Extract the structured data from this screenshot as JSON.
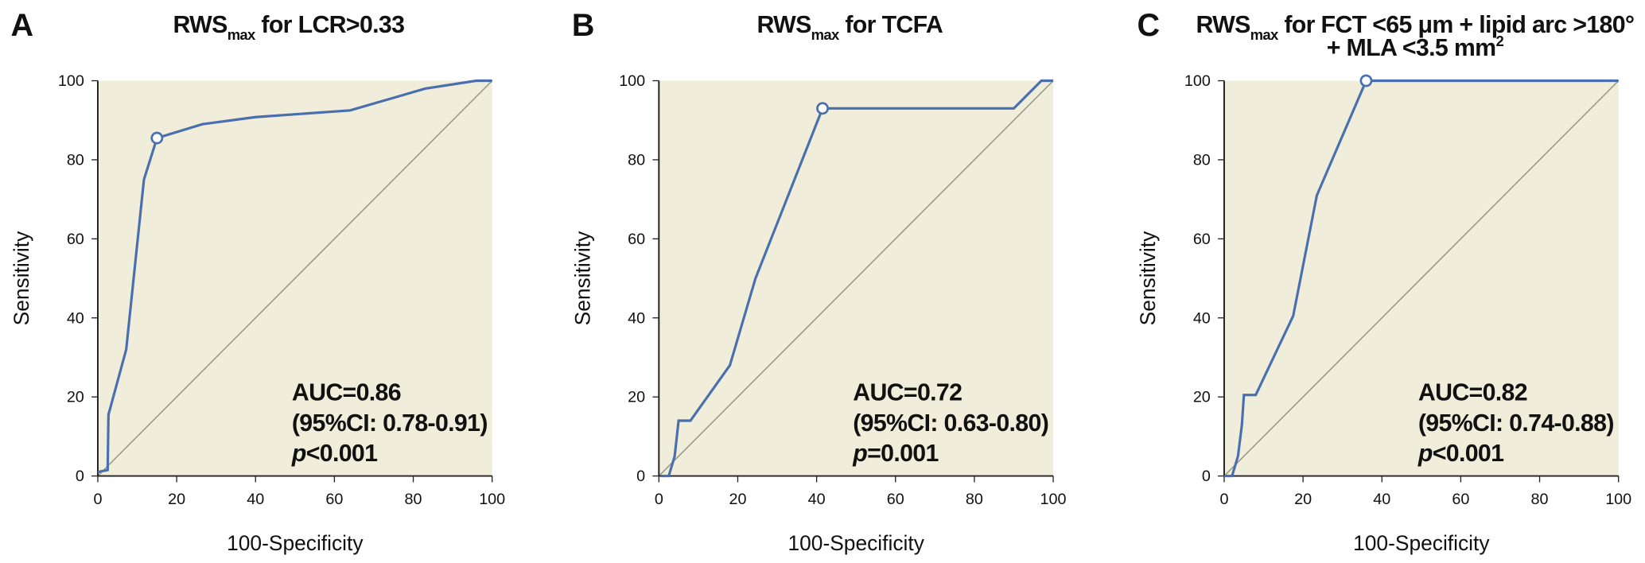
{
  "chart_data": [
    {
      "type": "line",
      "panel": "A",
      "title": [
        [
          {
            "text": "RWS"
          },
          {
            "text": "max",
            "sub": true
          },
          {
            "text": " for LCR>0.33"
          }
        ]
      ],
      "xlabel": "100-Specificity",
      "ylabel": "Sensitivity",
      "xlim": [
        0,
        100
      ],
      "ylim": [
        0,
        100
      ],
      "xticks": [
        0,
        20,
        40,
        60,
        80,
        100
      ],
      "yticks": [
        0,
        20,
        40,
        60,
        80,
        100
      ],
      "series": [
        {
          "color": "#4a6fae",
          "x": [
            0,
            2.5,
            2.7,
            7.2,
            11.7,
            15,
            26.5,
            40,
            64,
            83,
            96,
            100
          ],
          "values": [
            1,
            1.5,
            15.5,
            32,
            75,
            85.5,
            89,
            90.8,
            92.5,
            98,
            100,
            100
          ]
        }
      ],
      "marker": {
        "x": 15,
        "y": 85.5
      },
      "annotations": [
        "AUC=0.86",
        "(95%CI: 0.78-0.91)"
      ],
      "p_symbol": "p",
      "p_value": "<0.001"
    },
    {
      "type": "line",
      "panel": "B",
      "title": [
        [
          {
            "text": "RWS"
          },
          {
            "text": "max",
            "sub": true
          },
          {
            "text": " for TCFA"
          }
        ]
      ],
      "xlabel": "100-Specificity",
      "ylabel": "Sensitivity",
      "xlim": [
        0,
        100
      ],
      "ylim": [
        0,
        100
      ],
      "xticks": [
        0,
        20,
        40,
        60,
        80,
        100
      ],
      "yticks": [
        0,
        20,
        40,
        60,
        80,
        100
      ],
      "series": [
        {
          "color": "#4a6fae",
          "x": [
            0.5,
            2.5,
            4,
            5,
            8,
            18,
            24.5,
            41.5,
            90,
            97,
            100
          ],
          "values": [
            0,
            0,
            5,
            14,
            14,
            28,
            50,
            93,
            93,
            100,
            100
          ]
        }
      ],
      "marker": {
        "x": 41.5,
        "y": 93
      },
      "annotations": [
        "AUC=0.72",
        "(95%CI: 0.63-0.80)"
      ],
      "p_symbol": "p",
      "p_value": "=0.001"
    },
    {
      "type": "line",
      "panel": "C",
      "title": [
        [
          {
            "text": "RWS"
          },
          {
            "text": "max",
            "sub": true
          },
          {
            "text": " for FCT <65 μm + lipid arc >180°"
          }
        ],
        [
          {
            "text": "+ MLA <3.5 mm"
          },
          {
            "text": "2",
            "sup": true
          }
        ]
      ],
      "xlabel": "100-Specificity",
      "ylabel": "Sensitivity",
      "xlim": [
        0,
        100
      ],
      "ylim": [
        0,
        100
      ],
      "xticks": [
        0,
        20,
        40,
        60,
        80,
        100
      ],
      "yticks": [
        0,
        20,
        40,
        60,
        80,
        100
      ],
      "series": [
        {
          "color": "#4a6fae",
          "x": [
            0,
            2,
            3.5,
            4.5,
            5,
            8,
            17.5,
            23.5,
            36,
            100
          ],
          "values": [
            0,
            0,
            5,
            13,
            20.5,
            20.5,
            40.5,
            71,
            100,
            100
          ]
        }
      ],
      "marker": {
        "x": 36,
        "y": 100
      },
      "annotations": [
        "AUC=0.82",
        "(95%CI: 0.74-0.88)"
      ],
      "p_symbol": "p",
      "p_value": "<0.001"
    }
  ]
}
